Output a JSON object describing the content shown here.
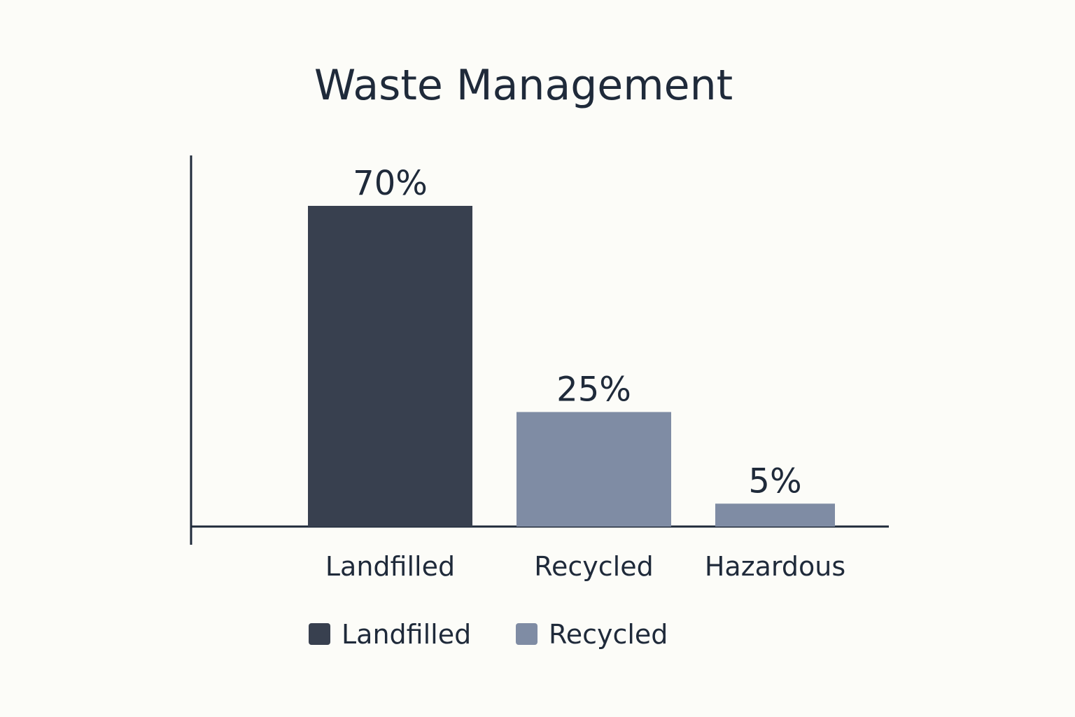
{
  "chart_data": {
    "type": "bar",
    "title": "Waste Management",
    "categories": [
      "Landfilled",
      "Recycled",
      "Hazardous"
    ],
    "values": [
      70,
      25,
      5
    ],
    "value_labels": [
      "70%",
      "25%",
      "5%"
    ],
    "bar_colors": [
      "#38404f",
      "#7f8ca4",
      "#7f8ca4"
    ],
    "ylim": [
      0,
      100
    ],
    "grid": false,
    "legend": {
      "position": "bottom",
      "entries": [
        {
          "label": "Landfilled",
          "color": "#38404f"
        },
        {
          "label": "Recycled",
          "color": "#7f8ca4"
        }
      ]
    },
    "axis_color": "#1f2a3a"
  }
}
